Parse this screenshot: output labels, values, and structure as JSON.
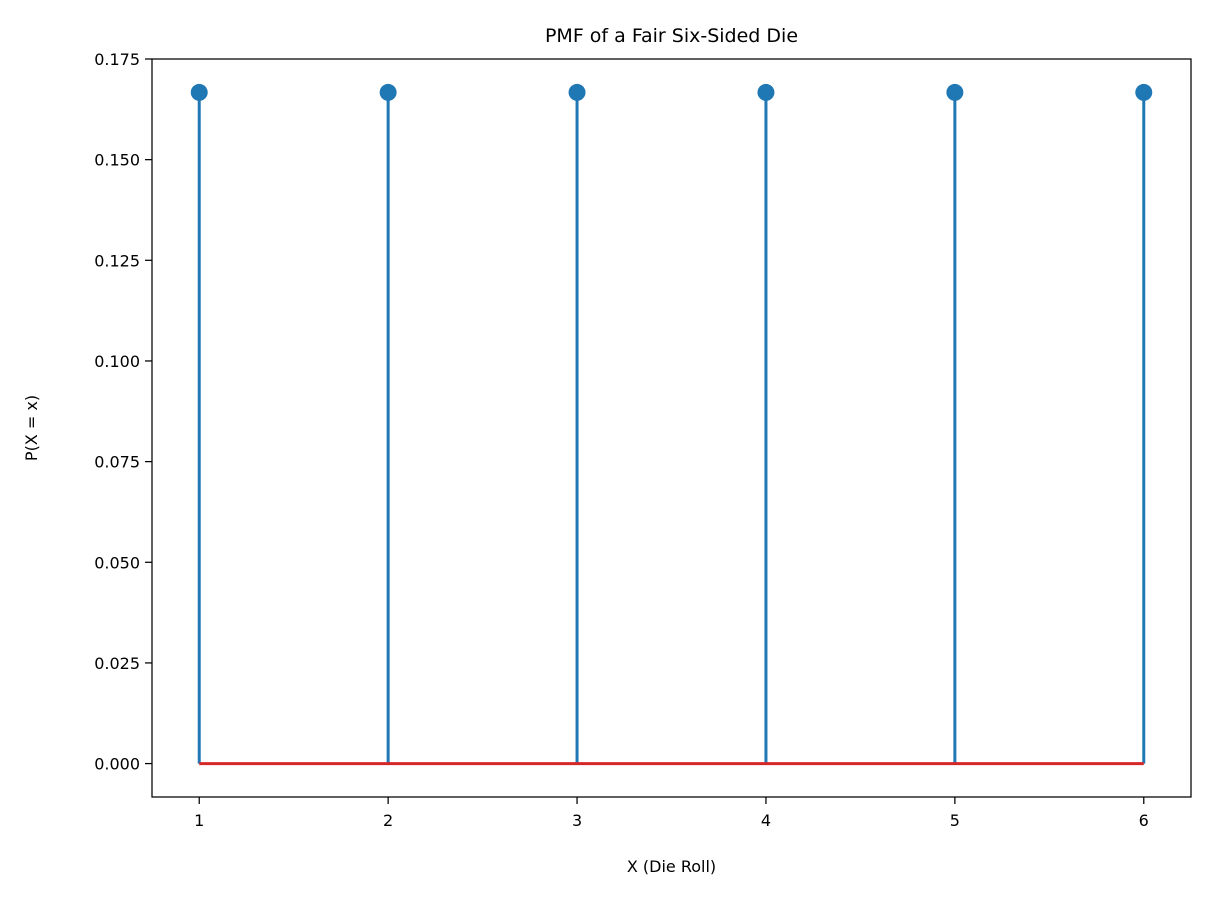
{
  "chart_data": {
    "type": "stem",
    "title": "PMF of a Fair Six-Sided Die",
    "xlabel": "X (Die Roll)",
    "ylabel": "P(X = x)",
    "x": [
      1,
      2,
      3,
      4,
      5,
      6
    ],
    "y": [
      0.1667,
      0.1667,
      0.1667,
      0.1667,
      0.1667,
      0.1667
    ],
    "xlim": [
      0.75,
      6.25
    ],
    "ylim": [
      -0.0083,
      0.175
    ],
    "xticks": [
      1,
      2,
      3,
      4,
      5,
      6
    ],
    "xtick_labels": [
      "1",
      "2",
      "3",
      "4",
      "5",
      "6"
    ],
    "yticks": [
      0.0,
      0.025,
      0.05,
      0.075,
      0.1,
      0.125,
      0.15,
      0.175
    ],
    "ytick_labels": [
      "0.000",
      "0.025",
      "0.050",
      "0.075",
      "0.100",
      "0.125",
      "0.150",
      "0.175"
    ],
    "baseline": 0,
    "grid": false,
    "colors": {
      "stem": "#1f77b4",
      "marker": "#1f77b4",
      "baseline": "#d62728"
    }
  }
}
